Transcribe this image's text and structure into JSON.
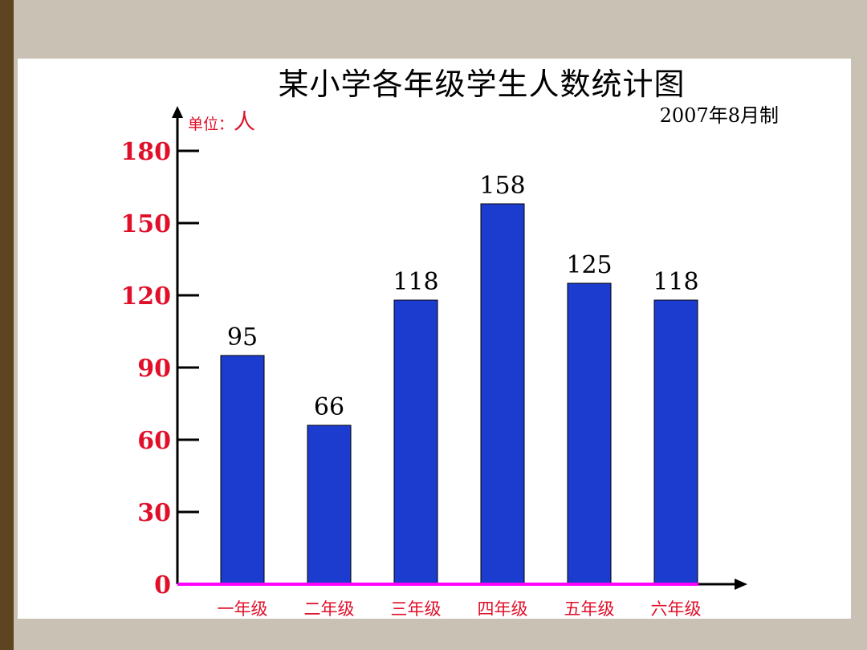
{
  "title": "某小学各年级学生人数统计图",
  "unit_label": "单位：",
  "unit_value": "人",
  "date_note": "2007年8月制",
  "colors": {
    "bar": "#1b3ccf",
    "axis": "#000000",
    "baseline": "#ff00ff",
    "tick_text": "#e0102a",
    "background": "#c9c1b3"
  },
  "chart_data": {
    "type": "bar",
    "title": "某小学各年级学生人数统计图",
    "categories": [
      "一年级",
      "二年级",
      "三年级",
      "四年级",
      "五年级",
      "六年级"
    ],
    "values": [
      95,
      66,
      118,
      158,
      125,
      118
    ],
    "value_labels": [
      "95",
      "66",
      "118",
      "158",
      "125",
      "118"
    ],
    "yticks": [
      "0",
      "30",
      "60",
      "90",
      "120",
      "150",
      "180"
    ],
    "ylim": [
      0,
      180
    ],
    "xlabel": "",
    "ylabel": "",
    "grid": false
  }
}
